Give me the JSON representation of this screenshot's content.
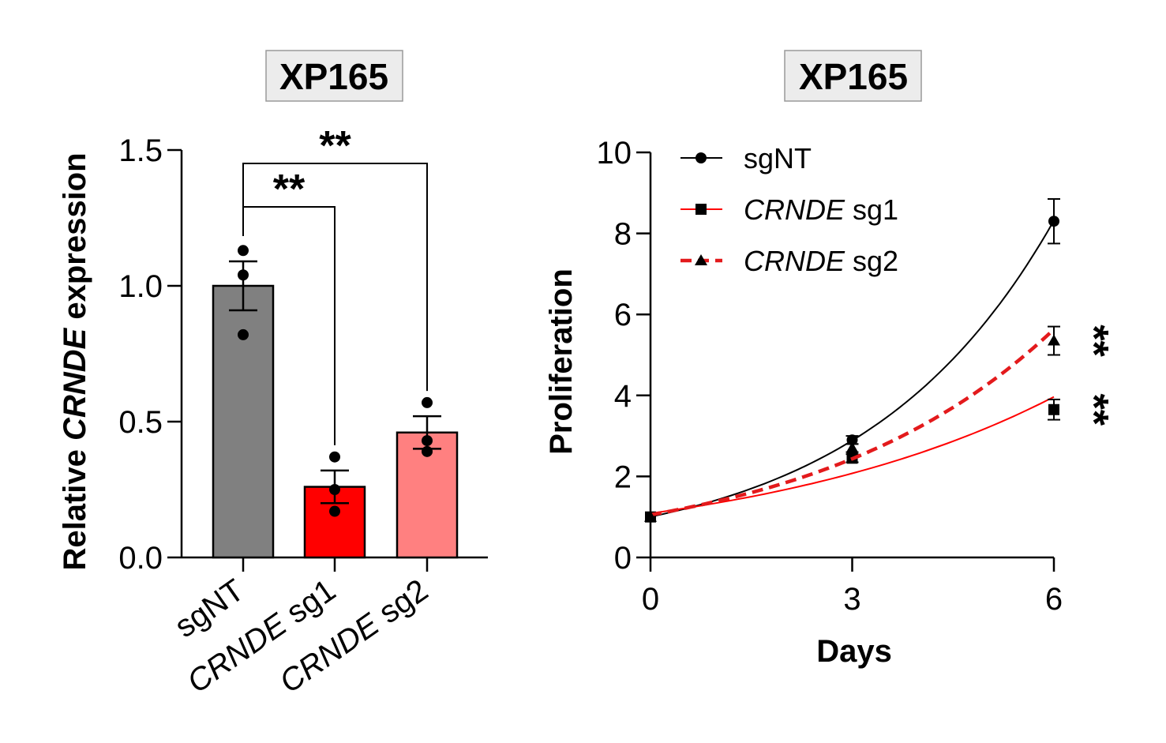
{
  "chart_data": [
    {
      "type": "bar",
      "title": "XP165",
      "ylabel": {
        "prefix": "Relative ",
        "italic": "CRNDE",
        "suffix": " expression"
      },
      "ylim": [
        0,
        1.5
      ],
      "yticks": [
        "0.0",
        "0.5",
        "1.0",
        "1.5"
      ],
      "yticks_values": [
        0,
        0.5,
        1.0,
        1.5
      ],
      "categories": [
        {
          "italic": "",
          "plain": "sgNT"
        },
        {
          "italic": "CRNDE",
          "plain": " sg1"
        },
        {
          "italic": "CRNDE",
          "plain": " sg2"
        }
      ],
      "values": [
        1.0,
        0.26,
        0.46
      ],
      "errors": [
        0.09,
        0.06,
        0.06
      ],
      "points": [
        [
          1.13,
          1.04,
          0.82
        ],
        [
          0.37,
          0.25,
          0.17
        ],
        [
          0.57,
          0.43,
          0.39
        ]
      ],
      "colors": [
        "#808080",
        "#ff0000",
        "#ff8080"
      ],
      "significance": [
        {
          "from": 0,
          "to": 1,
          "label": "**"
        },
        {
          "from": 0,
          "to": 2,
          "label": "**"
        }
      ]
    },
    {
      "type": "line",
      "title": "XP165",
      "xlabel": "Days",
      "ylabel": "Proliferation",
      "x": [
        0,
        3,
        6
      ],
      "xticks": [
        "0",
        "3",
        "6"
      ],
      "ylim": [
        0,
        10
      ],
      "yticks": [
        "0",
        "2",
        "4",
        "6",
        "8",
        "10"
      ],
      "yticks_values": [
        0,
        2,
        4,
        6,
        8,
        10
      ],
      "series": [
        {
          "name": {
            "italic": "",
            "plain": "sgNT"
          },
          "values": [
            1.0,
            2.9,
            8.3
          ],
          "errors": [
            0,
            0.1,
            0.55
          ],
          "color": "#000000",
          "marker": "circle",
          "dashed": false
        },
        {
          "name": {
            "italic": "CRNDE",
            "plain": " sg1"
          },
          "values": [
            1.0,
            2.45,
            3.65
          ],
          "errors": [
            0,
            0.1,
            0.25
          ],
          "color": "#ff0000",
          "marker": "square",
          "dashed": false
        },
        {
          "name": {
            "italic": "CRNDE",
            "plain": " sg2"
          },
          "values": [
            1.0,
            2.7,
            5.35
          ],
          "errors": [
            0,
            0.1,
            0.35
          ],
          "color": "#e31a1c",
          "marker": "triangle",
          "dashed": true
        }
      ],
      "significance": [
        {
          "series": 2,
          "label": "**"
        },
        {
          "series": 1,
          "label": "**"
        }
      ],
      "legend_position": "top-left"
    }
  ]
}
